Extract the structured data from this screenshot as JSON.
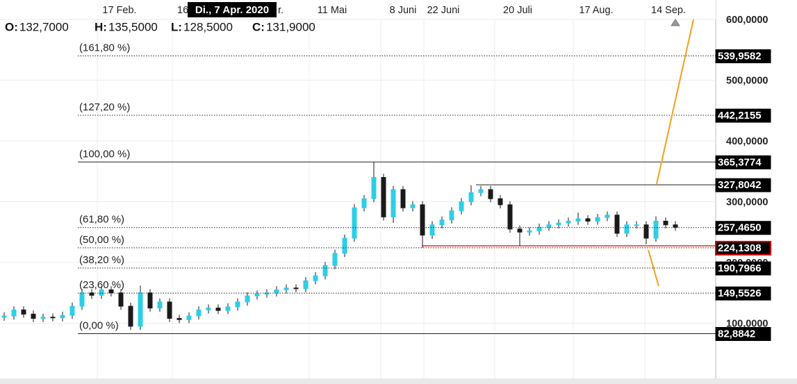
{
  "chart_data": {
    "type": "candlestick",
    "tooltip": "Di., 7 Apr. 2020",
    "x_labels": [
      "17 Feb.",
      "16",
      "r.",
      "11 Mai",
      "8 Juni",
      "22 Juni",
      "20 Juli",
      "17 Aug.",
      "14 Sep."
    ],
    "ohlc": [
      {
        "key": "O:",
        "value": "132,7000"
      },
      {
        "key": "H:",
        "value": "135,5000"
      },
      {
        "key": "L:",
        "value": "128,5000"
      },
      {
        "key": "C:",
        "value": "131,9000"
      }
    ],
    "ylim": [
      0,
      632
    ],
    "yticks": [
      {
        "value": 100,
        "label": "100,0000"
      },
      {
        "value": 200,
        "label": "200,0000"
      },
      {
        "value": 300,
        "label": "300,0000"
      },
      {
        "value": 400,
        "label": "400,0000"
      },
      {
        "value": 500,
        "label": "500,0000"
      },
      {
        "value": 600,
        "label": "600,0000"
      }
    ],
    "grid": true,
    "up_color": "#2ccfe6",
    "down_color": "#1a1a1a",
    "levels": [
      {
        "label": "(161,80 %)",
        "value": 539.9582,
        "value_label": "539,9582",
        "style": "dotted"
      },
      {
        "label": "(127,20 %)",
        "value": 442.2155,
        "value_label": "442,2155",
        "style": "dotted"
      },
      {
        "label": "(100,00 %)",
        "value": 365.3774,
        "value_label": "365,3774",
        "style": "solid"
      },
      {
        "value": 327.8042,
        "value_label": "327,8042",
        "style": "solid"
      },
      {
        "label": "(61,80 %)",
        "value": 257.465,
        "value_label": "257,4650",
        "style": "dotted"
      },
      {
        "label": "(50,00 %)",
        "value": 224.1308,
        "value_label": "224,1308",
        "style": "dotted",
        "color": "#e00000"
      },
      {
        "label": "(38,20 %)",
        "value": 190.7966,
        "value_label": "190,7966",
        "style": "dotted"
      },
      {
        "label": "(23,60 %)",
        "value": 149.5526,
        "value_label": "149,5526",
        "style": "dotted"
      },
      {
        "label": "(0,00 %)",
        "value": 82.8842,
        "value_label": "82,8842",
        "style": "solid"
      }
    ],
    "open": [
      110,
      112,
      122,
      115,
      108,
      110,
      109,
      113,
      128,
      150,
      146,
      155,
      150,
      128,
      95,
      150,
      125,
      135,
      108,
      106,
      112,
      122,
      125,
      121,
      127,
      135,
      145,
      148,
      150,
      155,
      158,
      157,
      170,
      178,
      195,
      215,
      240,
      290,
      305,
      340,
      275,
      320,
      290,
      295,
      245,
      262,
      270,
      285,
      300,
      315,
      320,
      305,
      295,
      255,
      250,
      252,
      258,
      262,
      265,
      268,
      272,
      268,
      274,
      278,
      248,
      262,
      262,
      240,
      268,
      262
    ],
    "high": [
      118,
      128,
      128,
      121,
      116,
      116,
      119,
      134,
      156,
      156,
      161,
      161,
      156,
      134,
      162,
      156,
      141,
      141,
      114,
      118,
      128,
      131,
      131,
      133,
      141,
      151,
      154,
      156,
      161,
      164,
      164,
      176,
      184,
      201,
      221,
      246,
      296,
      311,
      365,
      346,
      326,
      326,
      301,
      301,
      268,
      276,
      291,
      306,
      327,
      326,
      326,
      311,
      301,
      261,
      258,
      264,
      268,
      271,
      274,
      282,
      278,
      280,
      284,
      284,
      268,
      268,
      268,
      276,
      274,
      268
    ],
    "low": [
      104,
      106,
      109,
      102,
      102,
      103,
      103,
      107,
      122,
      140,
      140,
      144,
      122,
      89,
      89,
      119,
      119,
      102,
      100,
      100,
      106,
      116,
      115,
      115,
      121,
      129,
      139,
      142,
      144,
      149,
      151,
      151,
      164,
      172,
      189,
      209,
      234,
      284,
      299,
      269,
      265,
      284,
      284,
      224,
      239,
      256,
      264,
      279,
      294,
      309,
      299,
      289,
      249,
      228,
      244,
      246,
      252,
      256,
      259,
      262,
      262,
      262,
      268,
      242,
      242,
      256,
      230,
      234,
      256,
      252
    ],
    "close": [
      112,
      122,
      115,
      108,
      110,
      109,
      113,
      128,
      150,
      146,
      155,
      150,
      128,
      95,
      150,
      125,
      135,
      108,
      106,
      112,
      122,
      125,
      121,
      127,
      135,
      145,
      148,
      150,
      155,
      158,
      157,
      170,
      178,
      195,
      215,
      240,
      290,
      305,
      340,
      275,
      320,
      290,
      295,
      245,
      262,
      270,
      285,
      300,
      315,
      320,
      305,
      295,
      255,
      250,
      252,
      258,
      262,
      265,
      268,
      272,
      268,
      274,
      278,
      248,
      262,
      262,
      240,
      268,
      262,
      258
    ]
  }
}
